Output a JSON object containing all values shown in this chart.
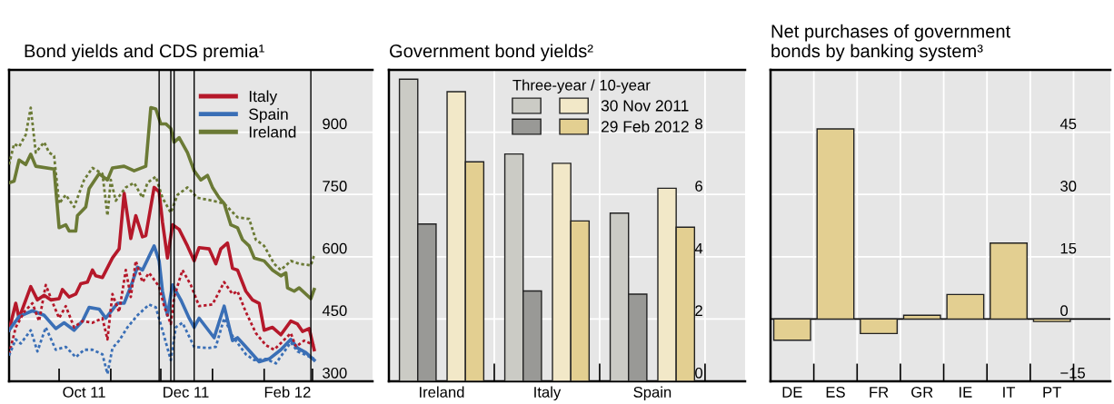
{
  "chart_data": [
    {
      "type": "line",
      "title": "Bond yields and CDS premia¹",
      "grid": "y",
      "legend": "top right",
      "xlim": [
        "2011-09-01",
        "2012-04-06"
      ],
      "xticks": [
        {
          "value": "2011-10-01",
          "label": null
        },
        {
          "value": "2011-11-01",
          "label": null
        },
        {
          "value": "2011-12-01",
          "label": null
        },
        {
          "value": "2012-01-01",
          "label": null
        },
        {
          "value": "2012-02-01",
          "label": null
        },
        {
          "value": "2012-03-01",
          "label": null
        },
        {
          "value": "2011-10-16",
          "label": "Oct 11"
        },
        {
          "value": "2011-12-16",
          "label": "Dec 11"
        },
        {
          "value": "2012-02-15",
          "label": "Feb 12"
        }
      ],
      "ylim": [
        300,
        1050
      ],
      "yticks": [
        300,
        450,
        600,
        750,
        900
      ],
      "ref_lines": [
        {
          "axis": "x",
          "value": "2011-11-30",
          "color": "#000000"
        },
        {
          "axis": "x",
          "value": "2011-12-07",
          "color": "#000000"
        },
        {
          "axis": "x",
          "value": "2011-12-09",
          "color": "#000000"
        },
        {
          "axis": "x",
          "value": "2011-12-21",
          "color": "#000000"
        },
        {
          "axis": "x",
          "value": "2012-02-29",
          "color": "#000000"
        }
      ],
      "series": [
        {
          "name": "Italy",
          "color": "#b5182a",
          "line_style": "solid",
          "x": [
            "2011-09-01",
            "2011-09-05",
            "2011-09-07",
            "2011-09-14",
            "2011-09-18",
            "2011-09-22",
            "2011-09-26",
            "2011-10-01",
            "2011-10-03",
            "2011-10-07",
            "2011-10-11",
            "2011-10-14",
            "2011-10-18",
            "2011-10-21",
            "2011-10-23",
            "2011-10-27",
            "2011-11-02",
            "2011-11-06",
            "2011-11-09",
            "2011-11-13",
            "2011-11-16",
            "2011-11-20",
            "2011-11-22",
            "2011-11-27",
            "2011-11-30",
            "2011-12-02",
            "2011-12-05",
            "2011-12-08",
            "2011-12-12",
            "2011-12-17",
            "2011-12-21",
            "2011-12-24",
            "2011-12-30",
            "2012-01-03",
            "2012-01-06",
            "2012-01-10",
            "2012-01-13",
            "2012-01-16",
            "2012-01-21",
            "2012-01-25",
            "2012-01-29",
            "2012-02-01",
            "2012-02-06",
            "2012-02-11",
            "2012-02-17",
            "2012-02-21",
            "2012-02-24",
            "2012-02-28",
            "2012-03-02"
          ],
          "values": [
            423,
            488,
            452,
            528,
            496,
            507,
            496,
            499,
            521,
            503,
            510,
            535,
            539,
            568,
            554,
            550,
            597,
            619,
            753,
            644,
            699,
            648,
            651,
            767,
            756,
            684,
            597,
            677,
            666,
            626,
            590,
            622,
            619,
            583,
            619,
            633,
            572,
            568,
            517,
            496,
            488,
            423,
            430,
            412,
            445,
            438,
            420,
            427,
            376
          ]
        },
        {
          "name": "Spain",
          "color": "#3a6fb6",
          "line_style": "solid",
          "x": [
            "2011-09-01",
            "2011-09-07",
            "2011-09-15",
            "2011-09-22",
            "2011-09-29",
            "2011-10-04",
            "2011-10-10",
            "2011-10-15",
            "2011-10-19",
            "2011-10-25",
            "2011-10-29",
            "2011-11-05",
            "2011-11-09",
            "2011-11-13",
            "2011-11-17",
            "2011-11-20",
            "2011-11-27",
            "2011-11-30",
            "2011-12-02",
            "2011-12-05",
            "2011-12-08",
            "2011-12-13",
            "2011-12-18",
            "2011-12-21",
            "2011-12-24",
            "2012-01-02",
            "2012-01-08",
            "2012-01-13",
            "2012-01-16",
            "2012-01-21",
            "2012-01-29",
            "2012-02-04",
            "2012-02-11",
            "2012-02-17",
            "2012-02-21",
            "2012-02-26",
            "2012-03-02"
          ],
          "values": [
            423,
            456,
            470,
            459,
            427,
            441,
            423,
            445,
            478,
            474,
            452,
            488,
            488,
            528,
            575,
            568,
            626,
            590,
            517,
            459,
            532,
            496,
            452,
            430,
            452,
            405,
            481,
            398,
            405,
            383,
            347,
            354,
            376,
            401,
            380,
            369,
            351
          ]
        },
        {
          "name": "Ireland",
          "color": "#6b7a35",
          "line_style": "solid",
          "x": [
            "2011-09-01",
            "2011-09-04",
            "2011-09-07",
            "2011-09-11",
            "2011-09-14",
            "2011-09-17",
            "2011-09-28",
            "2011-10-01",
            "2011-10-05",
            "2011-10-07",
            "2011-10-11",
            "2011-10-12",
            "2011-10-17",
            "2011-10-19",
            "2011-10-25",
            "2011-10-30",
            "2011-11-02",
            "2011-11-09",
            "2011-11-15",
            "2011-11-22",
            "2011-11-25",
            "2011-11-28",
            "2011-12-01",
            "2011-12-04",
            "2011-12-07",
            "2011-12-09",
            "2011-12-12",
            "2011-12-17",
            "2011-12-21",
            "2011-12-25",
            "2011-12-29",
            "2012-01-01",
            "2012-01-05",
            "2012-01-08",
            "2012-01-12",
            "2012-01-16",
            "2012-01-19",
            "2012-01-23",
            "2012-01-26",
            "2012-02-01",
            "2012-02-06",
            "2012-02-11",
            "2012-02-14",
            "2012-02-15",
            "2012-02-19",
            "2012-02-22",
            "2012-02-29",
            "2012-03-02"
          ],
          "values": [
            778,
            782,
            833,
            822,
            847,
            818,
            811,
            670,
            677,
            662,
            662,
            699,
            720,
            764,
            800,
            785,
            814,
            818,
            807,
            818,
            959,
            956,
            920,
            920,
            909,
            876,
            887,
            851,
            807,
            785,
            796,
            767,
            742,
            728,
            677,
            670,
            641,
            626,
            597,
            590,
            568,
            554,
            561,
            525,
            517,
            525,
            499,
            521
          ]
        },
        {
          "color": "#b5182a",
          "line_style": "dotted",
          "x": [
            "2011-09-01",
            "2011-09-05",
            "2011-09-10",
            "2011-09-15",
            "2011-09-19",
            "2011-09-23",
            "2011-09-28",
            "2011-10-01",
            "2011-10-05",
            "2011-10-10",
            "2011-10-15",
            "2011-10-21",
            "2011-10-27",
            "2011-10-30",
            "2011-11-02",
            "2011-11-06",
            "2011-11-10",
            "2011-11-13",
            "2011-11-16",
            "2011-11-20",
            "2011-11-24",
            "2011-11-30",
            "2011-12-03",
            "2011-12-07",
            "2011-12-09",
            "2011-12-14",
            "2011-12-19",
            "2011-12-24",
            "2012-01-01",
            "2012-01-08",
            "2012-01-13",
            "2012-01-16",
            "2012-01-21",
            "2012-01-27",
            "2012-02-02",
            "2012-02-07",
            "2012-02-17",
            "2012-02-20",
            "2012-02-25",
            "2012-03-02"
          ],
          "values": [
            365,
            430,
            467,
            488,
            445,
            532,
            481,
            452,
            481,
            430,
            445,
            441,
            452,
            401,
            510,
            467,
            568,
            503,
            590,
            539,
            561,
            528,
            481,
            438,
            503,
            568,
            532,
            481,
            485,
            539,
            510,
            517,
            467,
            416,
            387,
            376,
            416,
            383,
            398,
            387
          ]
        },
        {
          "color": "#3a6fb6",
          "line_style": "dotted",
          "x": [
            "2011-09-01",
            "2011-09-05",
            "2011-09-08",
            "2011-09-14",
            "2011-09-18",
            "2011-09-23",
            "2011-09-29",
            "2011-10-05",
            "2011-10-11",
            "2011-10-16",
            "2011-10-21",
            "2011-10-27",
            "2011-10-30",
            "2011-11-02",
            "2011-11-06",
            "2011-11-11",
            "2011-11-17",
            "2011-11-24",
            "2011-11-28",
            "2011-12-02",
            "2011-12-07",
            "2011-12-10",
            "2011-12-14",
            "2011-12-21",
            "2011-12-29",
            "2012-01-03",
            "2012-01-08",
            "2012-01-13",
            "2012-01-21",
            "2012-01-26",
            "2012-02-02",
            "2012-02-08",
            "2012-02-17",
            "2012-02-21",
            "2012-02-25",
            "2012-03-02"
          ],
          "values": [
            362,
            401,
            391,
            423,
            372,
            430,
            376,
            383,
            358,
            376,
            376,
            365,
            318,
            380,
            398,
            430,
            459,
            485,
            478,
            423,
            351,
            430,
            441,
            383,
            380,
            383,
            452,
            409,
            365,
            351,
            354,
            343,
            394,
            372,
            365,
            354
          ]
        },
        {
          "color": "#6b7a35",
          "line_style": "dotted",
          "x": [
            "2011-09-01",
            "2011-09-04",
            "2011-09-07",
            "2011-09-11",
            "2011-09-14",
            "2011-09-17",
            "2011-09-22",
            "2011-09-25",
            "2011-09-28",
            "2011-10-01",
            "2011-10-05",
            "2011-10-10",
            "2011-10-16",
            "2011-10-21",
            "2011-10-27",
            "2011-10-30",
            "2011-11-01",
            "2011-11-04",
            "2011-11-10",
            "2011-11-15",
            "2011-11-20",
            "2011-11-23",
            "2011-11-28",
            "2011-12-02",
            "2011-12-07",
            "2011-12-11",
            "2011-12-17",
            "2011-12-23",
            "2012-01-01",
            "2012-01-08",
            "2012-01-16",
            "2012-01-23",
            "2012-01-27",
            "2012-02-01",
            "2012-02-07",
            "2012-02-11",
            "2012-02-17",
            "2012-02-22",
            "2012-02-29",
            "2012-03-02"
          ],
          "values": [
            822,
            872,
            865,
            894,
            959,
            851,
            876,
            851,
            843,
            728,
            749,
            720,
            785,
            814,
            800,
            699,
            785,
            735,
            767,
            778,
            742,
            778,
            793,
            742,
            706,
            749,
            767,
            742,
            735,
            728,
            695,
            691,
            641,
            626,
            583,
            568,
            590,
            583,
            579,
            604
          ]
        }
      ]
    },
    {
      "type": "bar",
      "title": "Government bond yields²",
      "grid": true,
      "legend": "top right",
      "legend_title": "Three-year / 10-year",
      "categories": [
        "Ireland",
        "Italy",
        "Spain"
      ],
      "ylim": [
        0,
        10
      ],
      "yticks": [
        0,
        2,
        4,
        6,
        8
      ],
      "series": [
        {
          "color": "#cbcbc5",
          "values": [
            9.7,
            7.3,
            5.4
          ]
        },
        {
          "color": "#999996",
          "values": [
            5.05,
            2.9,
            2.8
          ]
        },
        {
          "name": "30 Nov 2011",
          "color": "#f2e8c8",
          "values": [
            9.3,
            7.0,
            6.2
          ]
        },
        {
          "name": "29 Feb 2012",
          "color": "#e3cf91",
          "values": [
            7.05,
            5.15,
            4.95
          ]
        }
      ]
    },
    {
      "type": "bar",
      "title": "Net purchases of government\nbonds by banking system³",
      "grid": true,
      "categories": [
        "DE",
        "ES",
        "FR",
        "GR",
        "IE",
        "IT",
        "PT"
      ],
      "ylim": [
        -15,
        60
      ],
      "yticks": [
        {
          "value": -15,
          "label": "−15"
        },
        0,
        15,
        30,
        45
      ],
      "ref_lines": [
        {
          "axis": "y",
          "value": 0,
          "color": "#000000"
        }
      ],
      "series": [
        {
          "color": "#e3cf91",
          "values": [
            -5.1,
            45.8,
            -3.5,
            0.9,
            5.9,
            18.3,
            -0.6
          ]
        }
      ]
    }
  ]
}
